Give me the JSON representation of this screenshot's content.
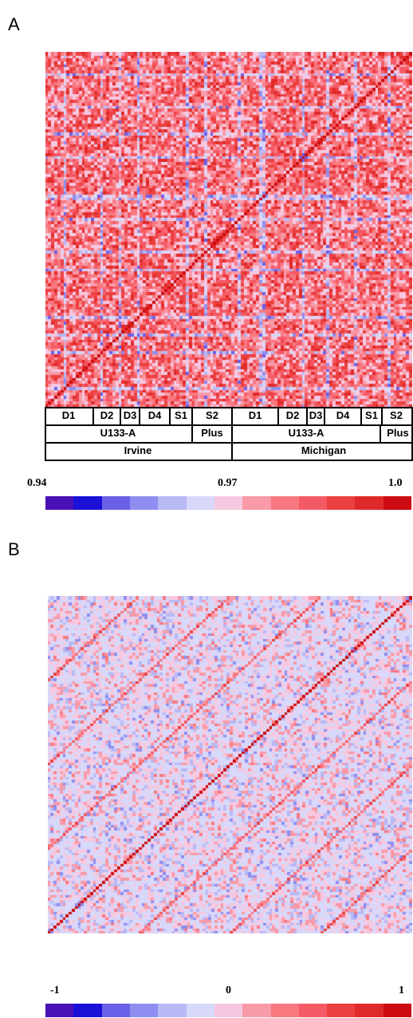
{
  "panels": [
    {
      "letter": "A",
      "ann_row1": [
        "D1",
        "D2",
        "D3",
        "D4",
        "S1",
        "S2",
        "D1",
        "D2",
        "D3",
        "D4",
        "S1",
        "S2"
      ],
      "ann_row2": [
        "U133-A",
        "Plus",
        "U133-A",
        "Plus"
      ],
      "ann_row3": [
        "Irvine",
        "Michigan"
      ],
      "scale_labels": [
        "0.94",
        "0.97",
        "1.0"
      ]
    },
    {
      "letter": "B",
      "scale_labels": [
        "-1",
        "0",
        "1"
      ]
    }
  ],
  "colorbar": [
    "#4a10b8",
    "#1a10d8",
    "#6a60e8",
    "#8e8ef0",
    "#b8b8f4",
    "#d8d8fa",
    "#f6c8e0",
    "#f89aa8",
    "#f87880",
    "#f45a66",
    "#ec4040",
    "#e02a2a",
    "#cc0c10"
  ],
  "chart_data": [
    {
      "type": "heatmap",
      "title": "",
      "color_range": [
        0.94,
        1.0
      ],
      "colorbar_ticks": [
        0.94,
        0.97,
        1.0
      ],
      "groups_lab": [
        "Irvine",
        "Michigan"
      ],
      "groups_platform": [
        "U133-A",
        "Plus",
        "U133-A",
        "Plus"
      ],
      "groups_donor": [
        "D1",
        "D2",
        "D3",
        "D4",
        "S1",
        "S2",
        "D1",
        "D2",
        "D3",
        "D4",
        "S1",
        "S2"
      ],
      "n_samples": 120,
      "diagonal_value": 1.0
    },
    {
      "type": "heatmap",
      "title": "",
      "color_range": [
        -1,
        1
      ],
      "colorbar_ticks": [
        -1,
        0,
        1
      ],
      "n_samples": 120,
      "diagonal_value": 1
    }
  ]
}
